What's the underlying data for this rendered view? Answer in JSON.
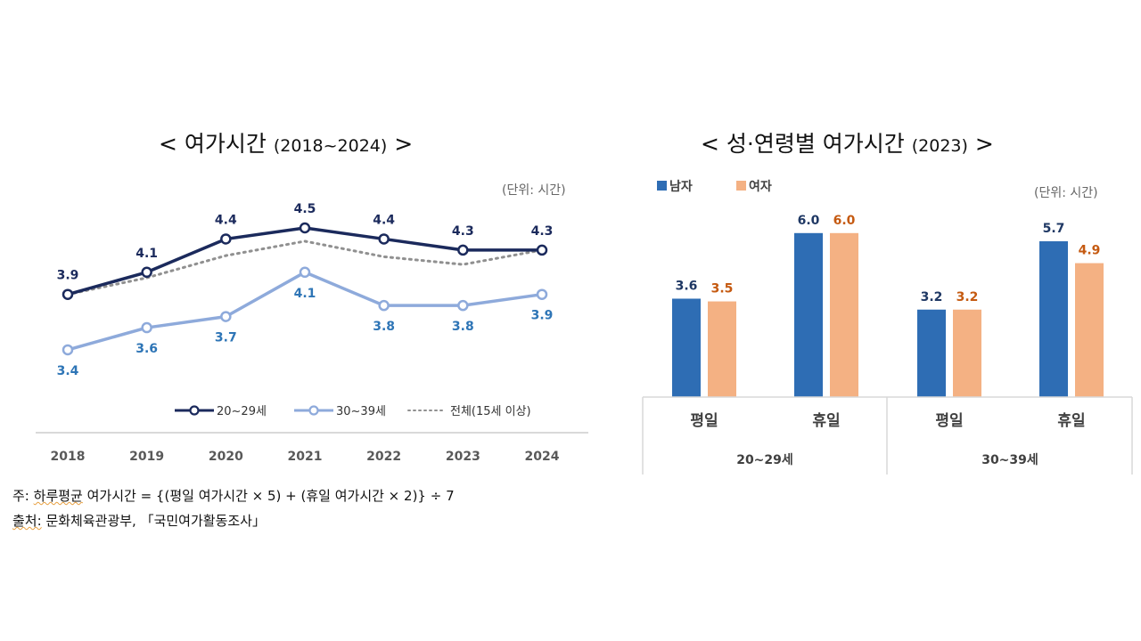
{
  "chart_data": [
    {
      "type": "line",
      "title_main": "< 여가시간",
      "title_years": "(2018~2024)",
      "title_close": ">",
      "unit_label": "(단위: 시간)",
      "categories": [
        "2018",
        "2019",
        "2020",
        "2021",
        "2022",
        "2023",
        "2024"
      ],
      "ylim": [
        3.0,
        5.0
      ],
      "grid": false,
      "legend_position": "bottom-right",
      "series": [
        {
          "name": "20~29세",
          "color": "#1b2a5c",
          "style": "solid-marker",
          "values": [
            3.9,
            4.1,
            4.4,
            4.5,
            4.4,
            4.3,
            4.3
          ],
          "labels": [
            "3.9",
            "4.1",
            "4.4",
            "4.5",
            "4.4",
            "4.3",
            "4.3"
          ]
        },
        {
          "name": "30~39세",
          "color": "#8eaadb",
          "label_color": "#2e75b6",
          "style": "solid-marker",
          "values": [
            3.4,
            3.6,
            3.7,
            4.1,
            3.8,
            3.8,
            3.9
          ],
          "labels": [
            "3.4",
            "3.6",
            "3.7",
            "4.1",
            "3.8",
            "3.8",
            "3.9"
          ]
        },
        {
          "name": "전체(15세 이상)",
          "color": "#909090",
          "style": "dotted",
          "values": [
            3.9,
            4.05,
            4.25,
            4.38,
            4.24,
            4.17,
            4.3
          ]
        }
      ]
    },
    {
      "type": "bar",
      "title_main": "< 성·연령별 여가시간",
      "title_years": "(2023)",
      "title_close": ">",
      "unit_label": "(단위: 시간)",
      "legend_position": "top-left",
      "categories": [
        "평일",
        "휴일",
        "평일",
        "휴일"
      ],
      "groups": [
        "20~29세",
        "30~39세"
      ],
      "ylim": [
        0,
        7
      ],
      "series": [
        {
          "name": "남자",
          "color": "#2e6db4",
          "label_color": "#1f3864",
          "values": [
            3.6,
            6.0,
            3.2,
            5.7
          ],
          "labels": [
            "3.6",
            "6.0",
            "3.2",
            "5.7"
          ]
        },
        {
          "name": "여자",
          "color": "#f4b183",
          "label_color": "#c55a11",
          "values": [
            3.5,
            6.0,
            3.2,
            4.9
          ],
          "labels": [
            "3.5",
            "6.0",
            "3.2",
            "4.9"
          ]
        }
      ]
    }
  ],
  "notes": {
    "note_prefix": "주:",
    "note_underlined": "하루평균",
    "note_rest": "여가시간 = {(평일 여가시간 × 5) + (휴일 여가시간 × 2)} ÷ 7",
    "source_prefix": "출처:",
    "source_rest": "문화체육관광부, 「국민여가활동조사」"
  }
}
